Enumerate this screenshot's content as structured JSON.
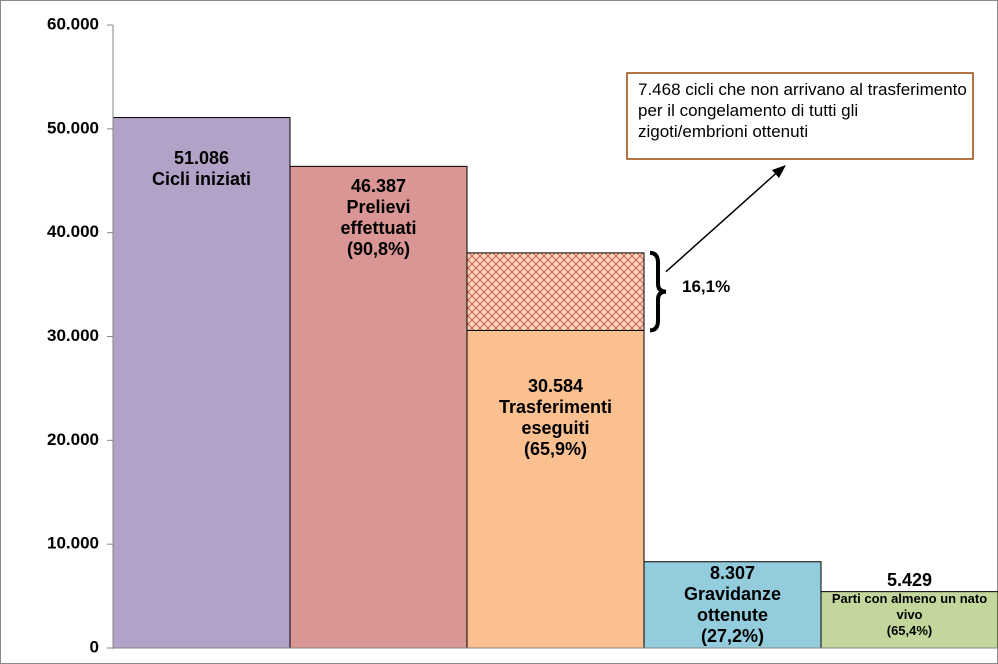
{
  "chart_data": {
    "type": "bar",
    "categories": [
      "Cicli iniziati",
      "Prelievi effettuati",
      "Trasferimenti eseguiti",
      "Gravidanze ottenute",
      "Parti con almeno un nato vivo"
    ],
    "values": [
      51086,
      46387,
      30584,
      8307,
      5429
    ],
    "value_labels": [
      "51.086",
      "46.387",
      "30.584",
      "8.307",
      "5.429"
    ],
    "shares": [
      null,
      "(90,8%)",
      "(65,9%)",
      "(27,2%)",
      "(65,4%)"
    ],
    "colors": [
      "#b3a2c7",
      "#d99694",
      "#fac090",
      "#93cddd",
      "#c3d69b"
    ],
    "gap": {
      "category": 2,
      "value": 7468,
      "share": "16,1%",
      "annotation": "7.468 cicli che non arrivano al trasferimento per il congelamento di tutti gli zigoti/embrioni  ottenuti"
    },
    "ylim": [
      0,
      60000
    ],
    "yticks": [
      0,
      {
        "value": 10000,
        "label": "10.000"
      },
      {
        "value": 20000,
        "label": "20.000"
      },
      {
        "value": 30000,
        "label": "30.000"
      },
      {
        "value": 40000,
        "label": "40.000"
      },
      {
        "value": 50000,
        "label": "50.000"
      },
      {
        "value": 60000,
        "label": "60.000"
      }
    ]
  }
}
